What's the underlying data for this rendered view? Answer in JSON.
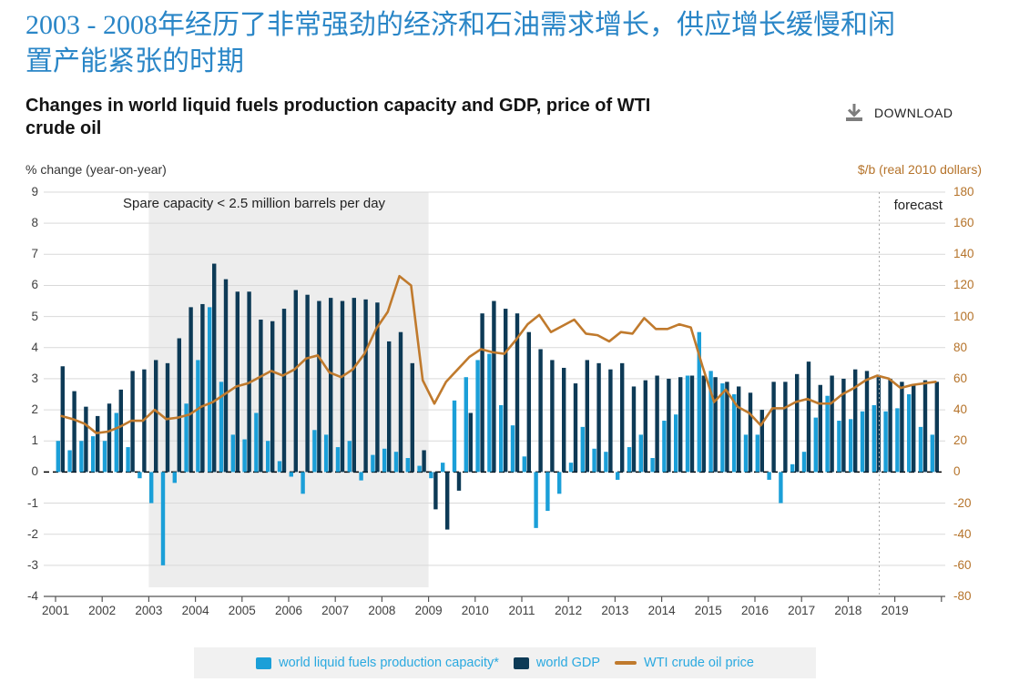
{
  "header": {
    "title_zh_lines": [
      "2003 - 2008年经历了非常强劲的经济和石油需求增长，供应增长缓慢和闲",
      "置产能紧张的时期"
    ],
    "subtitle_lines": [
      "Changes in world liquid fuels production capacity and GDP, price of WTI",
      "crude oil"
    ]
  },
  "download": {
    "label": "DOWNLOAD"
  },
  "axes": {
    "left_header": "% change (year-on-year)",
    "right_header": "$/b (real 2010 dollars)",
    "left_ticks": [
      9,
      8,
      7,
      6,
      5,
      4,
      3,
      2,
      1,
      0,
      -1,
      -2,
      -3,
      -4
    ],
    "right_ticks": [
      180,
      160,
      140,
      120,
      100,
      80,
      60,
      40,
      20,
      0,
      -20,
      -40,
      -60,
      -80
    ],
    "years": [
      2001,
      2002,
      2003,
      2004,
      2005,
      2006,
      2007,
      2008,
      2009,
      2010,
      2011,
      2012,
      2013,
      2014,
      2015,
      2016,
      2017,
      2018,
      2019
    ]
  },
  "annotations": {
    "spare_capacity": "Spare capacity < 2.5 million barrels per day",
    "forecast": "forecast"
  },
  "legend": {
    "items": [
      {
        "label": "world liquid fuels production capacity*",
        "swatch": "square",
        "color": "#1b9fd8"
      },
      {
        "label": "world GDP",
        "swatch": "square",
        "color": "#0d3a56"
      },
      {
        "label": "WTI crude oil price",
        "swatch": "line",
        "color": "#c07a2d"
      }
    ]
  },
  "chart_data": {
    "type": "bar+line",
    "x_start": "2001Q1",
    "x_end": "2019Q4",
    "frequency": "quarterly",
    "left_axis": {
      "label": "% change (year-on-year)",
      "range": [
        -4,
        9
      ]
    },
    "right_axis": {
      "label": "$/b (real 2010 dollars)",
      "range": [
        -80,
        180
      ]
    },
    "shaded_region": {
      "from_year": 2003,
      "to_year": 2009,
      "label": "Spare capacity < 2.5 million barrels per day"
    },
    "forecast_start": "2018Q4",
    "colors": {
      "capacity": "#1b9fd8",
      "gdp": "#0d3a56",
      "wti": "#c07a2d",
      "shade": "#ededed",
      "grid": "#d9d9d9"
    },
    "series": [
      {
        "name": "world liquid fuels production capacity*",
        "axis": "left",
        "type": "bar",
        "values": [
          1.0,
          0.7,
          1.0,
          1.15,
          1.0,
          1.9,
          0.8,
          -0.2,
          -1.0,
          -3.0,
          -0.35,
          2.2,
          3.6,
          5.3,
          2.9,
          1.2,
          1.05,
          1.9,
          1.0,
          0.35,
          -0.15,
          -0.7,
          1.35,
          1.2,
          0.8,
          1.0,
          -0.27,
          0.55,
          0.75,
          0.65,
          0.45,
          0.2,
          -0.2,
          0.3,
          2.3,
          3.05,
          3.6,
          3.8,
          2.15,
          1.5,
          0.5,
          -1.8,
          -1.25,
          -0.7,
          0.3,
          1.45,
          0.75,
          0.65,
          -0.25,
          0.8,
          1.2,
          0.45,
          1.65,
          1.85,
          3.1,
          4.5,
          3.25,
          2.85,
          2.5,
          1.2,
          1.2,
          -0.25,
          -1.0,
          0.25,
          0.65,
          1.75,
          2.45,
          1.65,
          1.7,
          1.95,
          2.15,
          1.95,
          2.05,
          2.5,
          1.45,
          1.2
        ]
      },
      {
        "name": "world GDP",
        "axis": "left",
        "type": "bar",
        "values": [
          3.4,
          2.6,
          2.1,
          1.8,
          2.2,
          2.65,
          3.25,
          3.3,
          3.6,
          3.5,
          4.3,
          5.3,
          5.4,
          6.7,
          6.2,
          5.8,
          5.8,
          4.9,
          4.85,
          5.25,
          5.85,
          5.7,
          5.5,
          5.6,
          5.5,
          5.6,
          5.55,
          5.45,
          4.2,
          4.5,
          3.5,
          0.7,
          -1.2,
          -1.85,
          -0.6,
          1.9,
          5.1,
          5.5,
          5.25,
          5.1,
          4.5,
          3.95,
          3.6,
          3.35,
          2.85,
          3.6,
          3.5,
          3.3,
          3.5,
          2.75,
          2.95,
          3.1,
          3.0,
          3.05,
          3.1,
          3.1,
          3.05,
          2.9,
          2.75,
          2.55,
          2.0,
          2.9,
          2.9,
          3.15,
          3.55,
          2.8,
          3.1,
          3.0,
          3.3,
          3.25,
          3.05,
          3.0,
          2.9,
          2.8,
          2.95,
          2.9
        ]
      },
      {
        "name": "WTI crude oil price",
        "axis": "right",
        "type": "line",
        "values": [
          36,
          34,
          31,
          25,
          26,
          29,
          33,
          33,
          40,
          34,
          35,
          37,
          42,
          45,
          50,
          55,
          57,
          61,
          65,
          62,
          66,
          73,
          75,
          64,
          61,
          66,
          76,
          92,
          103,
          126,
          120,
          59,
          44,
          58,
          66,
          74,
          79,
          77,
          76,
          85,
          95,
          101,
          90,
          94,
          98,
          89,
          88,
          84,
          90,
          89,
          99,
          92,
          92,
          95,
          93,
          68,
          45,
          53,
          42,
          38,
          30,
          41,
          41,
          45,
          47,
          44,
          44,
          50,
          54,
          59,
          62,
          60,
          54,
          56,
          57,
          58
        ]
      }
    ]
  }
}
